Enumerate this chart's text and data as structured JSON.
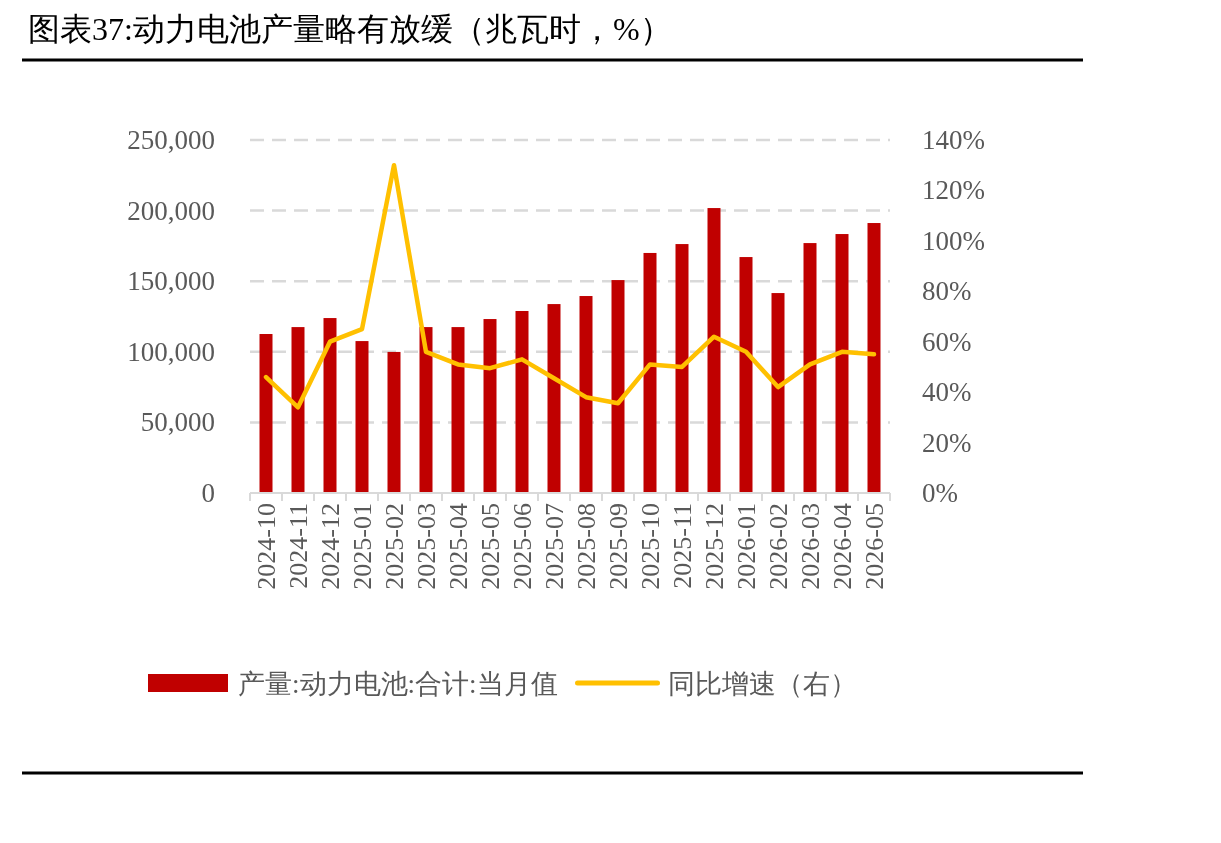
{
  "chart_data": {
    "type": "bar",
    "title": "图表37:动力电池产量略有放缓（兆瓦时，%）",
    "categories": [
      "2024-10",
      "2024-11",
      "2024-12",
      "2025-01",
      "2025-02",
      "2025-03",
      "2025-04",
      "2025-05",
      "2025-06",
      "2025-07",
      "2025-08",
      "2025-09",
      "2025-10",
      "2025-11",
      "2025-12",
      "2026-01",
      "2026-02",
      "2026-03",
      "2026-04",
      "2026-05"
    ],
    "series": [
      {
        "name": "产量:动力电池:合计:当月值",
        "color": "#c00000",
        "values": [
          112600,
          117500,
          123900,
          107600,
          99900,
          117500,
          117500,
          123200,
          128900,
          133800,
          139500,
          150800,
          170000,
          176300,
          201800,
          167100,
          141600,
          177000,
          183400,
          191200
        ]
      },
      {
        "name": "同比增速（右）",
        "type": "line",
        "axis": "y2",
        "color": "#ffc000",
        "values": [
          46,
          34,
          60,
          65,
          130,
          56,
          51,
          49.5,
          53,
          45.5,
          38,
          35.6,
          51,
          50,
          62,
          56,
          42,
          51,
          56,
          55
        ]
      }
    ],
    "ylim": [
      0,
      250000
    ],
    "yticks": [
      0,
      {
        "value": 50000,
        "label": "50,000"
      },
      {
        "value": 100000,
        "label": "100,000"
      },
      {
        "value": 150000,
        "label": "150,000"
      },
      {
        "value": 200000,
        "label": "200,000"
      },
      {
        "value": 250000,
        "label": "250,000"
      }
    ],
    "y2lim": [
      0,
      140
    ],
    "y2ticks": [
      {
        "value": 0,
        "label": "0%"
      },
      {
        "value": 20,
        "label": "20%"
      },
      {
        "value": 40,
        "label": "40%"
      },
      {
        "value": 60,
        "label": "60%"
      },
      {
        "value": 80,
        "label": "80%"
      },
      {
        "value": 100,
        "label": "100%"
      },
      {
        "value": 120,
        "label": "120%"
      },
      {
        "value": 140,
        "label": "140%"
      }
    ],
    "grid": "y",
    "legend": "bottom"
  }
}
